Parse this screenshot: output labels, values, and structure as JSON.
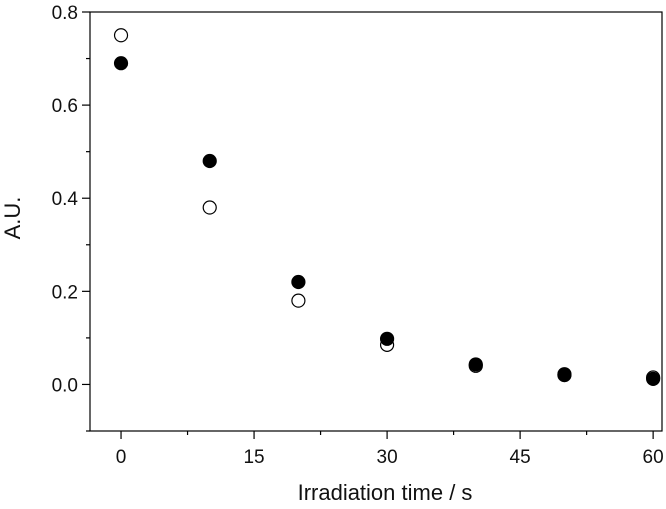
{
  "chart_data": {
    "type": "scatter",
    "title": "",
    "xlabel": "Irradiation time / s",
    "ylabel": "A.U.",
    "xlim": [
      -3.5,
      61
    ],
    "ylim": [
      -0.1,
      0.8
    ],
    "xticks": [
      0,
      15,
      30,
      45,
      60
    ],
    "xtick_labels": [
      "0",
      "15",
      "30",
      "45",
      "60"
    ],
    "yticks": [
      0.0,
      0.2,
      0.4,
      0.6,
      0.8
    ],
    "ytick_labels": [
      "0.0",
      "0.2",
      "0.4",
      "0.6",
      "0.8"
    ],
    "grid": false,
    "legend": "none",
    "series": [
      {
        "marker": "filled-circle",
        "color": "#000000",
        "x": [
          0,
          10,
          20,
          30,
          40,
          50,
          60
        ],
        "y": [
          0.69,
          0.48,
          0.22,
          0.098,
          0.043,
          0.022,
          0.012
        ]
      },
      {
        "marker": "open-circle",
        "color": "#000000",
        "x": [
          0,
          10,
          20,
          30,
          40,
          50,
          60
        ],
        "y": [
          0.75,
          0.38,
          0.18,
          0.085,
          0.04,
          0.02,
          0.015
        ]
      }
    ]
  }
}
